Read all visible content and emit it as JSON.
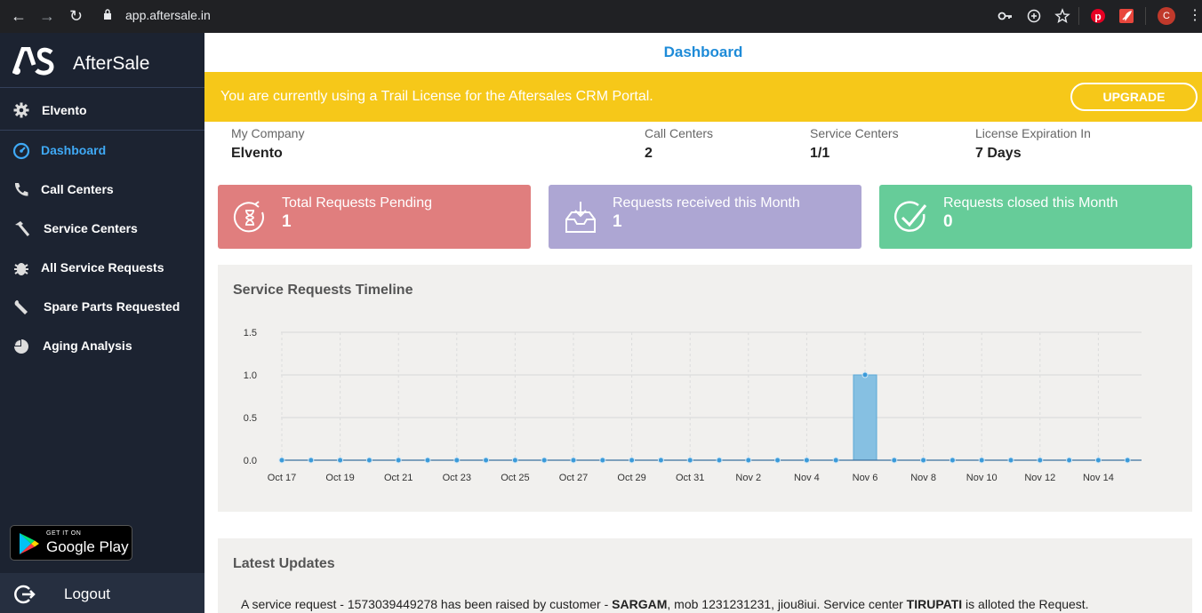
{
  "browser": {
    "url": "app.aftersale.in",
    "profile_initial": "C",
    "icons": [
      "back-icon",
      "forward-icon",
      "reload-icon",
      "lock-icon",
      "key-icon",
      "zoom-icon",
      "star-icon",
      "pinterest-icon",
      "rocket-icon",
      "menu-icon"
    ]
  },
  "sidebar": {
    "brand_name": "AfterSale",
    "company": "Elvento",
    "items": [
      {
        "label": "Dashboard",
        "icon": "dashboard-icon",
        "active": true
      },
      {
        "label": "Call Centers",
        "icon": "phone-icon",
        "active": false
      },
      {
        "label": "Service Centers",
        "icon": "hammer-icon",
        "active": false
      },
      {
        "label": "All Service Requests",
        "icon": "bug-icon",
        "active": false
      },
      {
        "label": "Spare Parts Requested",
        "icon": "wrench-icon",
        "active": false
      },
      {
        "label": "Aging Analysis",
        "icon": "pie-icon",
        "active": false
      }
    ],
    "google_play_small": "GET IT ON",
    "google_play_big": "Google Play",
    "logout": "Logout"
  },
  "main": {
    "title": "Dashboard",
    "banner": {
      "message": "You are currently using a Trail License for the Aftersales CRM Portal.",
      "button": "UPGRADE"
    },
    "info": [
      {
        "label": "My Company",
        "value": "Elvento"
      },
      {
        "label": "Call Centers",
        "value": "2"
      },
      {
        "label": "Service Centers",
        "value": "1/1"
      },
      {
        "label": "License Expiration In",
        "value": "7 Days"
      }
    ],
    "stats": [
      {
        "title": "Total Requests Pending",
        "value": "1",
        "color": "#e07e7e",
        "icon": "hourglass-icon"
      },
      {
        "title": "Requests received this Month",
        "value": "1",
        "color": "#ada6d3",
        "icon": "inbox-icon"
      },
      {
        "title": "Requests closed this Month",
        "value": "0",
        "color": "#66cc99",
        "icon": "check-circle-icon"
      }
    ],
    "timeline_title": "Service Requests Timeline",
    "updates_title": "Latest Updates",
    "update": {
      "pre": "A service request - 1573039449278 has been raised by customer - ",
      "customer": "SARGAM",
      "mid": ", mob 1231231231, jiou8iui. Service center ",
      "center": "TIRUPATI",
      "post": " is alloted the Request."
    }
  },
  "chart_data": {
    "type": "bar",
    "title": "Service Requests Timeline",
    "categories": [
      "Oct 17",
      "Oct 18",
      "Oct 19",
      "Oct 20",
      "Oct 21",
      "Oct 22",
      "Oct 23",
      "Oct 24",
      "Oct 25",
      "Oct 26",
      "Oct 27",
      "Oct 28",
      "Oct 29",
      "Oct 30",
      "Oct 31",
      "Nov 1",
      "Nov 2",
      "Nov 3",
      "Nov 4",
      "Nov 5",
      "Nov 6",
      "Nov 7",
      "Nov 8",
      "Nov 9",
      "Nov 10",
      "Nov 11",
      "Nov 12",
      "Nov 13",
      "Nov 14",
      "Nov 15"
    ],
    "tick_labels": [
      "Oct 17",
      "Oct 19",
      "Oct 21",
      "Oct 23",
      "Oct 25",
      "Oct 27",
      "Oct 29",
      "Oct 31",
      "Nov 2",
      "Nov 4",
      "Nov 6",
      "Nov 8",
      "Nov 10",
      "Nov 12",
      "Nov 14"
    ],
    "values": [
      0,
      0,
      0,
      0,
      0,
      0,
      0,
      0,
      0,
      0,
      0,
      0,
      0,
      0,
      0,
      0,
      0,
      0,
      0,
      0,
      1,
      0,
      0,
      0,
      0,
      0,
      0,
      0,
      0,
      0
    ],
    "yticks": [
      "0.0",
      "0.5",
      "1.0",
      "1.5"
    ],
    "ylim": [
      0,
      1.5
    ],
    "grid": true,
    "bar_color": "#86c0e2",
    "point_color": "#3a9ad9"
  }
}
